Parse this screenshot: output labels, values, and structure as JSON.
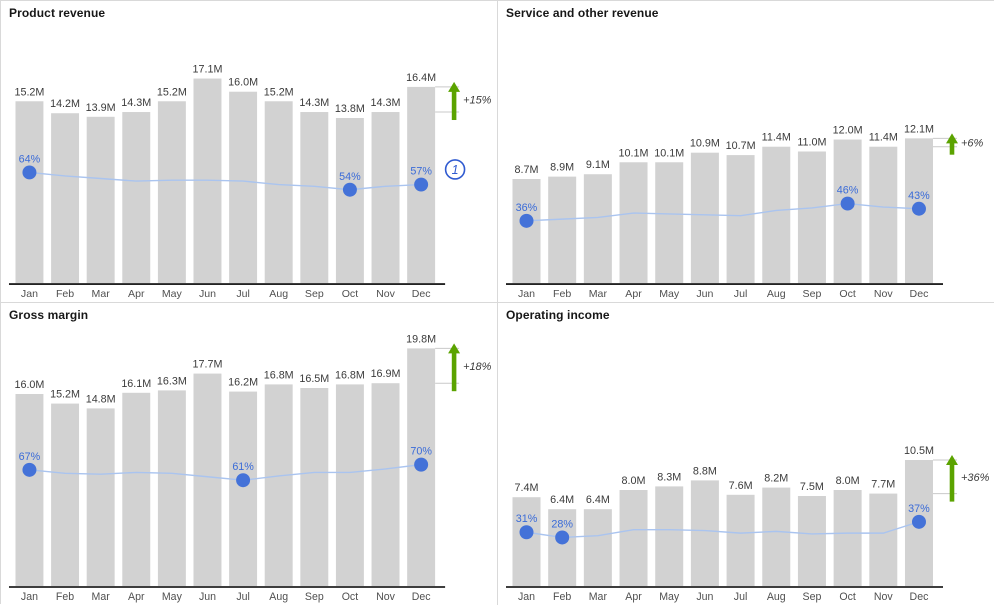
{
  "colors": {
    "bar": "#d2d2d2",
    "bar_label": "#3b3b3b",
    "axis": "#222222",
    "month_label": "#505050",
    "trend_line": "#aac4ef",
    "marker": "#4472d8",
    "marker_label": "#3a6bd8",
    "growth_arrow": "#5ba300",
    "growth_text": "#3c3c3c",
    "bracket": "#c9c9c9",
    "callout": "#2f5ad0",
    "title": "#171717"
  },
  "chart_data": [
    {
      "type": "bar+line",
      "title": "Product revenue",
      "grid": false,
      "legend": "none",
      "ylim_millions": [
        0,
        23.5
      ],
      "categories": [
        "Jan",
        "Feb",
        "Mar",
        "Apr",
        "May",
        "Jun",
        "Jul",
        "Aug",
        "Sep",
        "Oct",
        "Nov",
        "Dec"
      ],
      "bars": {
        "unit": "M",
        "labels": [
          "15.2M",
          "14.2M",
          "13.9M",
          "14.3M",
          "15.2M",
          "17.1M",
          "16.0M",
          "15.2M",
          "14.3M",
          "13.8M",
          "14.3M",
          "16.4M"
        ],
        "values": [
          15.2,
          14.2,
          13.9,
          14.3,
          15.2,
          17.1,
          16.0,
          15.2,
          14.3,
          13.8,
          14.3,
          16.4
        ]
      },
      "line": {
        "name": "percent",
        "values": [
          64,
          62,
          60.5,
          59,
          59.5,
          59.5,
          59,
          57,
          56,
          54,
          56,
          57
        ],
        "markers": [
          {
            "index": 0,
            "label": "64%"
          },
          {
            "index": 9,
            "label": "54%"
          },
          {
            "index": 11,
            "label": "57%"
          }
        ]
      },
      "growth": {
        "label": "+15%",
        "from": "Nov",
        "to": "Dec"
      },
      "callout": "1"
    },
    {
      "type": "bar+line",
      "title": "Service and other revenue",
      "grid": false,
      "legend": "none",
      "ylim_millions": [
        0,
        23.5
      ],
      "categories": [
        "Jan",
        "Feb",
        "Mar",
        "Apr",
        "May",
        "Jun",
        "Jul",
        "Aug",
        "Sep",
        "Oct",
        "Nov",
        "Dec"
      ],
      "bars": {
        "unit": "M",
        "labels": [
          "8.7M",
          "8.9M",
          "9.1M",
          "10.1M",
          "10.1M",
          "10.9M",
          "10.7M",
          "11.4M",
          "11.0M",
          "12.0M",
          "11.4M",
          "12.1M"
        ],
        "values": [
          8.7,
          8.9,
          9.1,
          10.1,
          10.1,
          10.9,
          10.7,
          11.4,
          11.0,
          12.0,
          11.4,
          12.1
        ]
      },
      "line": {
        "name": "percent",
        "values": [
          36,
          37,
          38,
          40.5,
          40,
          39.5,
          39,
          42,
          43.5,
          46,
          44,
          43
        ],
        "markers": [
          {
            "index": 0,
            "label": "36%"
          },
          {
            "index": 9,
            "label": "46%"
          },
          {
            "index": 11,
            "label": "43%"
          }
        ]
      },
      "growth": {
        "label": "+6%",
        "from": "Nov",
        "to": "Dec"
      },
      "callout": ""
    },
    {
      "type": "bar+line",
      "title": "Gross margin",
      "grid": false,
      "legend": "none",
      "ylim_millions": [
        0,
        23.5
      ],
      "categories": [
        "Jan",
        "Feb",
        "Mar",
        "Apr",
        "May",
        "Jun",
        "Jul",
        "Aug",
        "Sep",
        "Oct",
        "Nov",
        "Dec"
      ],
      "bars": {
        "unit": "M",
        "labels": [
          "16.0M",
          "15.2M",
          "14.8M",
          "16.1M",
          "16.3M",
          "17.7M",
          "16.2M",
          "16.8M",
          "16.5M",
          "16.8M",
          "16.9M",
          "19.8M"
        ],
        "values": [
          16.0,
          15.2,
          14.8,
          16.1,
          16.3,
          17.7,
          16.2,
          16.8,
          16.5,
          16.8,
          16.9,
          19.8
        ]
      },
      "line": {
        "name": "percent",
        "values": [
          67,
          65,
          64.5,
          65.5,
          65,
          63,
          61,
          63.5,
          65.5,
          65.5,
          67.5,
          70
        ],
        "markers": [
          {
            "index": 0,
            "label": "67%"
          },
          {
            "index": 6,
            "label": "61%"
          },
          {
            "index": 11,
            "label": "70%"
          }
        ]
      },
      "growth": {
        "label": "+18%",
        "from": "Nov",
        "to": "Dec"
      },
      "callout": ""
    },
    {
      "type": "bar+line",
      "title": "Operating income",
      "grid": false,
      "legend": "none",
      "ylim_millions": [
        0,
        23.5
      ],
      "categories": [
        "Jan",
        "Feb",
        "Mar",
        "Apr",
        "May",
        "Jun",
        "Jul",
        "Aug",
        "Sep",
        "Oct",
        "Nov",
        "Dec"
      ],
      "bars": {
        "unit": "M",
        "labels": [
          "7.4M",
          "6.4M",
          "6.4M",
          "8.0M",
          "8.3M",
          "8.8M",
          "7.6M",
          "8.2M",
          "7.5M",
          "8.0M",
          "7.7M",
          "10.5M"
        ],
        "values": [
          7.4,
          6.4,
          6.4,
          8.0,
          8.3,
          8.8,
          7.6,
          8.2,
          7.5,
          8.0,
          7.7,
          10.5
        ]
      },
      "line": {
        "name": "percent",
        "values": [
          31,
          28,
          29,
          32.5,
          32.5,
          32,
          30.5,
          31.5,
          30,
          30.5,
          30.5,
          37
        ],
        "markers": [
          {
            "index": 0,
            "label": "31%"
          },
          {
            "index": 1,
            "label": "28%"
          },
          {
            "index": 11,
            "label": "37%"
          }
        ]
      },
      "growth": {
        "label": "+36%",
        "from": "Nov",
        "to": "Dec"
      },
      "callout": ""
    }
  ]
}
